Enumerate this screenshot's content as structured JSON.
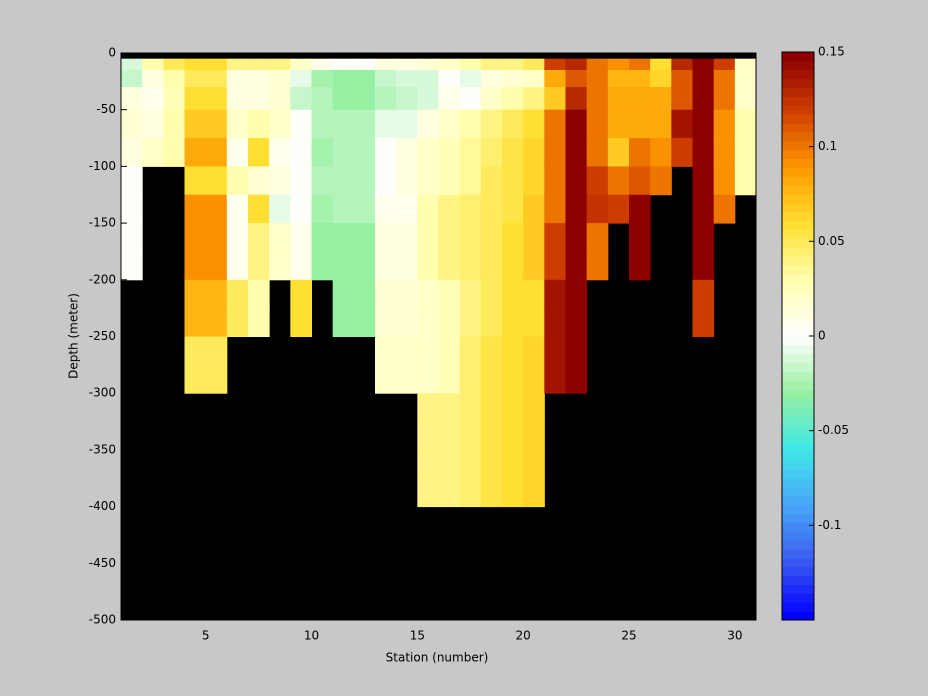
{
  "chart_data": {
    "type": "heatmap",
    "xlabel": "Station (number)",
    "ylabel": "Depth (meter)",
    "x": [
      1,
      2,
      3,
      4,
      5,
      6,
      7,
      8,
      9,
      10,
      11,
      12,
      13,
      14,
      15,
      16,
      17,
      18,
      19,
      20,
      21,
      22,
      23,
      24,
      25,
      26,
      27,
      28,
      29,
      30
    ],
    "y_edges": [
      -5,
      -15,
      -30,
      -50,
      -75,
      -100,
      -125,
      -150,
      -175,
      -200,
      -225,
      -250,
      -275,
      -300,
      -325,
      -350,
      -375,
      -400
    ],
    "xlim": [
      1,
      31
    ],
    "ylim": [
      -500,
      0
    ],
    "xticks": [
      5,
      10,
      15,
      20,
      25,
      30
    ],
    "yticks": [
      -500,
      -450,
      -400,
      -350,
      -300,
      -250,
      -200,
      -150,
      -100,
      -50,
      0
    ],
    "clim": [
      -0.15,
      0.15
    ],
    "cticks": [
      -0.1,
      -0.05,
      0,
      0.05,
      0.1,
      0.15
    ],
    "colormap": [
      "#0000ff",
      "#3c5cf0",
      "#48a8f8",
      "#40e8e8",
      "#98f0a0",
      "#ffffff",
      "#ffffb0",
      "#ffe030",
      "#ff9a00",
      "#d04000",
      "#8c0000"
    ],
    "missing_color": "#000000",
    "z": [
      [
        -0.01,
        -0.015,
        0.01,
        0.015,
        0.01,
        0.003,
        0.003,
        0.003,
        0.003,
        null,
        null,
        null,
        null,
        null,
        null,
        null,
        null
      ],
      [
        0.03,
        0.01,
        0.005,
        0.01,
        0.02,
        null,
        null,
        null,
        null,
        null,
        null,
        null,
        null,
        null,
        null,
        null,
        null
      ],
      [
        0.05,
        0.03,
        0.025,
        0.03,
        0.03,
        null,
        null,
        null,
        null,
        null,
        null,
        null,
        null,
        null,
        null,
        null,
        null
      ],
      [
        0.06,
        0.05,
        0.06,
        0.07,
        0.08,
        0.06,
        0.09,
        0.09,
        0.09,
        0.075,
        0.075,
        0.05,
        0.05,
        null,
        null,
        null,
        null
      ],
      [
        0.06,
        0.05,
        0.06,
        0.07,
        0.08,
        0.06,
        0.09,
        0.09,
        0.09,
        0.075,
        0.075,
        0.05,
        0.05,
        null,
        null,
        null,
        null
      ],
      [
        0.04,
        0.01,
        0.01,
        0.02,
        0.005,
        0.03,
        0.005,
        0.005,
        0.005,
        0.05,
        0.05,
        null,
        null,
        null,
        null,
        null,
        null
      ],
      [
        0.04,
        0.01,
        0.01,
        0.03,
        0.06,
        0.015,
        0.06,
        0.04,
        0.04,
        0.03,
        0.03,
        null,
        null,
        null,
        null,
        null,
        null
      ],
      [
        0.04,
        0.015,
        0.015,
        0.02,
        0.005,
        0.01,
        -0.005,
        0.02,
        0.02,
        null,
        null,
        null,
        null,
        null,
        null,
        null,
        null
      ],
      [
        0.02,
        -0.005,
        -0.015,
        0,
        0,
        0,
        0,
        0.005,
        0.005,
        0.06,
        0.06,
        null,
        null,
        null,
        null,
        null,
        null
      ],
      [
        0.005,
        -0.025,
        -0.02,
        -0.02,
        -0.025,
        -0.02,
        -0.025,
        -0.03,
        -0.03,
        null,
        null,
        null,
        null,
        null,
        null,
        null,
        null
      ],
      [
        0,
        -0.03,
        -0.03,
        -0.02,
        -0.02,
        -0.02,
        -0.02,
        -0.03,
        -0.03,
        -0.03,
        -0.03,
        null,
        null,
        null,
        null,
        null,
        null
      ],
      [
        0,
        -0.03,
        -0.03,
        -0.02,
        -0.02,
        -0.02,
        -0.02,
        -0.03,
        -0.03,
        -0.03,
        -0.03,
        null,
        null,
        null,
        null,
        null,
        null
      ],
      [
        0.01,
        -0.015,
        -0.02,
        -0.005,
        0,
        0,
        0.005,
        0.01,
        0.01,
        0.015,
        0.015,
        0.02,
        0.02,
        null,
        null,
        null,
        null
      ],
      [
        0.01,
        -0.01,
        -0.015,
        -0.005,
        0.01,
        0.01,
        0.005,
        0.01,
        0.01,
        0.015,
        0.015,
        0.02,
        0.02,
        null,
        null,
        null,
        null
      ],
      [
        0.015,
        -0.01,
        -0.01,
        0.01,
        0.02,
        0.02,
        0.03,
        0.03,
        0.03,
        0.02,
        0.02,
        0.02,
        0.02,
        0.04,
        0.04,
        0.04,
        0.04
      ],
      [
        0.02,
        0,
        0.005,
        0.02,
        0.025,
        0.025,
        0.04,
        0.04,
        0.04,
        0.025,
        0.025,
        0.025,
        0.025,
        0.04,
        0.04,
        0.04,
        0.04
      ],
      [
        0.03,
        -0.005,
        0,
        0.03,
        0.035,
        0.035,
        0.045,
        0.045,
        0.045,
        0.04,
        0.04,
        0.045,
        0.045,
        0.045,
        0.045,
        0.045,
        0.045
      ],
      [
        0.04,
        0.01,
        0.02,
        0.04,
        0.045,
        0.05,
        0.05,
        0.05,
        0.05,
        0.05,
        0.05,
        0.055,
        0.055,
        0.055,
        0.055,
        0.055,
        0.055
      ],
      [
        0.04,
        0.015,
        0.03,
        0.05,
        0.055,
        0.055,
        0.055,
        0.06,
        0.06,
        0.06,
        0.06,
        0.06,
        0.06,
        0.06,
        0.06,
        0.06,
        0.06
      ],
      [
        0.05,
        0.02,
        0.04,
        0.06,
        0.065,
        0.065,
        0.07,
        0.07,
        0.07,
        0.06,
        0.06,
        0.065,
        0.065,
        0.065,
        0.065,
        0.065,
        0.065
      ],
      [
        0.12,
        0.08,
        0.07,
        0.1,
        0.1,
        0.1,
        0.1,
        0.12,
        0.12,
        0.14,
        0.14,
        0.14,
        0.14,
        null,
        null,
        null,
        null
      ],
      [
        0.13,
        0.11,
        0.13,
        0.15,
        0.15,
        0.15,
        0.15,
        0.15,
        0.15,
        0.15,
        0.15,
        0.15,
        0.15,
        null,
        null,
        null,
        null
      ],
      [
        0.1,
        0.1,
        0.1,
        0.1,
        0.1,
        0.12,
        0.125,
        0.1,
        0.1,
        null,
        null,
        null,
        null,
        null,
        null,
        null,
        null
      ],
      [
        0.09,
        0.075,
        0.08,
        0.08,
        0.07,
        0.1,
        0.12,
        null,
        null,
        null,
        null,
        null,
        null,
        null,
        null,
        null,
        null
      ],
      [
        0.1,
        0.075,
        0.08,
        0.08,
        0.1,
        0.11,
        0.15,
        0.15,
        0.15,
        null,
        null,
        null,
        null,
        null,
        null,
        null,
        null
      ],
      [
        0.06,
        0.065,
        0.08,
        0.08,
        0.09,
        0.1,
        null,
        null,
        null,
        null,
        null,
        null,
        null,
        null,
        null,
        null,
        null
      ],
      [
        0.13,
        0.11,
        0.11,
        0.14,
        0.12,
        null,
        null,
        null,
        null,
        null,
        null,
        null,
        null,
        null,
        null,
        null,
        null
      ],
      [
        0.15,
        0.15,
        0.15,
        0.15,
        0.15,
        0.15,
        0.15,
        0.15,
        0.15,
        0.12,
        0.12,
        null,
        null,
        null,
        null,
        null,
        null
      ],
      [
        0.12,
        0.1,
        0.1,
        0.09,
        0.09,
        0.09,
        0.1,
        null,
        null,
        null,
        null,
        null,
        null,
        null,
        null,
        null,
        null
      ],
      [
        0.02,
        0.02,
        0.02,
        0.03,
        0.03,
        0.03,
        null,
        null,
        null,
        null,
        null,
        null,
        null,
        null,
        null,
        null,
        null
      ]
    ]
  }
}
